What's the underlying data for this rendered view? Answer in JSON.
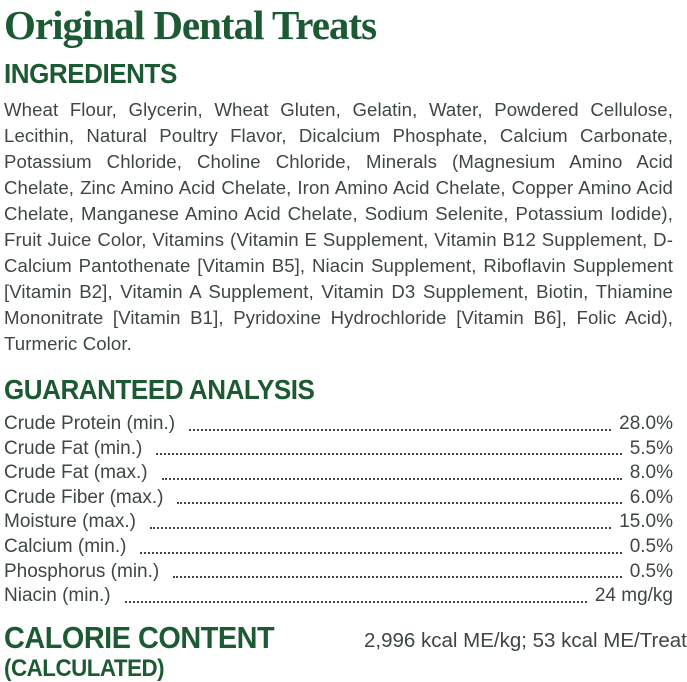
{
  "page": {
    "title": "Original Dental Treats"
  },
  "colors": {
    "brand_green": "#1c5a33",
    "body_text": "#3e4743"
  },
  "ingredients": {
    "heading": "INGREDIENTS",
    "text": "Wheat Flour, Glycerin, Wheat Gluten, Gelatin, Water, Powdered Cellulose, Lecithin, Natural Poultry Flavor, Dicalcium Phosphate, Calcium Carbonate, Potassium Chloride, Choline Chloride, Minerals (Magnesium Amino Acid Chelate, Zinc Amino Acid Chelate, Iron Amino Acid Chelate, Copper Amino Acid Chelate, Manganese Amino Acid Chelate, Sodium Selenite, Potassium Iodide), Fruit Juice Color, Vitamins (Vitamin E Supplement, Vitamin B12 Supplement, D-Calcium Pantothenate [Vitamin B5], Niacin Supplement, Riboflavin Supplement [Vitamin B2], Vitamin A Supplement, Vitamin D3 Supplement, Biotin, Thiamine Mononitrate [Vitamin B1], Pyridoxine Hydrochloride [Vitamin B6], Folic Acid), Turmeric Color."
  },
  "guaranteed_analysis": {
    "heading": "GUARANTEED ANALYSIS",
    "rows": [
      {
        "label": "Crude Protein (min.)",
        "value": "28.0%"
      },
      {
        "label": "Crude Fat (min.)",
        "value": "5.5%"
      },
      {
        "label": "Crude Fat (max.)",
        "value": "8.0%"
      },
      {
        "label": "Crude Fiber (max.)",
        "value": "6.0%"
      },
      {
        "label": "Moisture (max.)",
        "value": "15.0%"
      },
      {
        "label": "Calcium (min.)",
        "value": "0.5%"
      },
      {
        "label": "Phosphorus (min.)",
        "value": "0.5%"
      },
      {
        "label": "Niacin (min.)",
        "value": "24 mg/kg"
      }
    ]
  },
  "calorie_content": {
    "heading_line1": "CALORIE CONTENT",
    "heading_line2": "(CALCULATED)",
    "value": "2,996 kcal ME/kg; 53 kcal ME/Treat"
  }
}
